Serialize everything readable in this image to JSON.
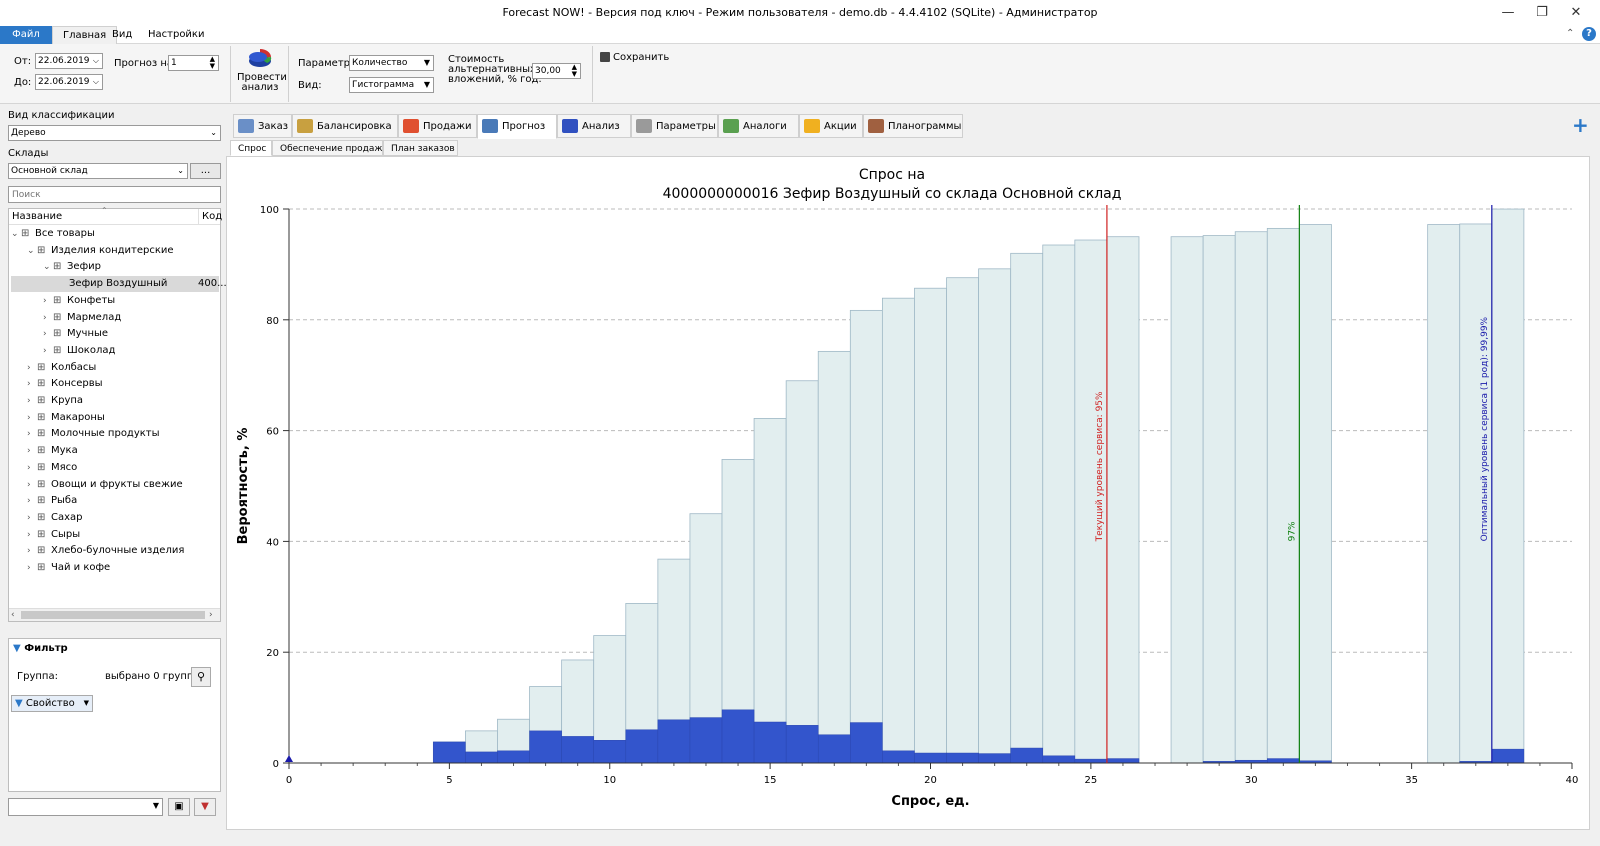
{
  "window": {
    "title": "Forecast NOW! - Версия под ключ - Режим пользователя - demo.db - 4.4.4102 (SQLite) - Администратор"
  },
  "menu": {
    "file": "Файл",
    "home": "Главная",
    "view": "Вид",
    "settings": "Настройки"
  },
  "ribbon": {
    "from_label": "От:",
    "from_value": "22.06.2019",
    "to_label": "До:",
    "to_value": "22.06.2019",
    "forecast_label": "Прогноз на:",
    "forecast_value": "1",
    "run_label_1": "Провести",
    "run_label_2": "анализ",
    "param_label": "Параметр:",
    "param_value": "Количество",
    "view_label": "Вид:",
    "view_value": "Гистограмма",
    "cost_label_1": "Стоимость",
    "cost_label_2": "альтернативных",
    "cost_label_3": "вложений, % год:",
    "cost_value": "30,00",
    "save_label": "Сохранить"
  },
  "left": {
    "classification_label": "Вид классификации",
    "classification_value": "Дерево",
    "warehouses_label": "Склады",
    "warehouse_value": "Основной склад",
    "browse_label": "...",
    "search_placeholder": "Поиск",
    "col_name": "Название",
    "col_code": "Код",
    "tree": [
      {
        "label": "Все товары",
        "level": 0,
        "exp": "⌄"
      },
      {
        "label": "Изделия кондитерские",
        "level": 1,
        "exp": "⌄"
      },
      {
        "label": "Зефир",
        "level": 2,
        "exp": "⌄"
      },
      {
        "label": "Зефир Воздушный",
        "level": 3,
        "exp": "",
        "code": "400...",
        "selected": true
      },
      {
        "label": "Конфеты",
        "level": 2,
        "exp": "›"
      },
      {
        "label": "Мармелад",
        "level": 2,
        "exp": "›"
      },
      {
        "label": "Мучные",
        "level": 2,
        "exp": "›"
      },
      {
        "label": "Шоколад",
        "level": 2,
        "exp": "›"
      },
      {
        "label": "Колбасы",
        "level": 1,
        "exp": "›"
      },
      {
        "label": "Консервы",
        "level": 1,
        "exp": "›"
      },
      {
        "label": "Крупа",
        "level": 1,
        "exp": "›"
      },
      {
        "label": "Макароны",
        "level": 1,
        "exp": "›"
      },
      {
        "label": "Молочные продукты",
        "level": 1,
        "exp": "›"
      },
      {
        "label": "Мука",
        "level": 1,
        "exp": "›"
      },
      {
        "label": "Мясо",
        "level": 1,
        "exp": "›"
      },
      {
        "label": "Овощи и фрукты свежие",
        "level": 1,
        "exp": "›"
      },
      {
        "label": "Рыба",
        "level": 1,
        "exp": "›"
      },
      {
        "label": "Сахар",
        "level": 1,
        "exp": "›"
      },
      {
        "label": "Сыры",
        "level": 1,
        "exp": "›"
      },
      {
        "label": "Хлебо-булочные изделия",
        "level": 1,
        "exp": "›"
      },
      {
        "label": "Чай и кофе",
        "level": 1,
        "exp": "›"
      }
    ],
    "filter_title": "Фильтр",
    "group_label": "Группа:",
    "group_value": "выбрано 0 групп",
    "property_label": "Свойство"
  },
  "tabs": [
    {
      "label": "Заказ",
      "color": "#6a8fc7"
    },
    {
      "label": "Балансировка",
      "color": "#c8a040"
    },
    {
      "label": "Продажи",
      "color": "#e05030"
    },
    {
      "label": "Прогноз",
      "color": "#4a7ab8",
      "active": true
    },
    {
      "label": "Анализ",
      "color": "#3050c0"
    },
    {
      "label": "Параметры",
      "color": "#9a9a9a"
    },
    {
      "label": "Аналоги",
      "color": "#5aa050"
    },
    {
      "label": "Акции",
      "color": "#f0b020"
    },
    {
      "label": "Планограммы",
      "color": "#a06040"
    }
  ],
  "subtabs": [
    {
      "label": "Спрос",
      "active": true
    },
    {
      "label": "Обеспечение продаж"
    },
    {
      "label": "План заказов"
    }
  ],
  "chart_data": {
    "type": "bar",
    "title_line1": "Спрос на",
    "title_line2": "4000000000016 Зефир Воздушный со склада Основной склад",
    "xlabel": "Спрос, ед.",
    "ylabel": "Вероятность, %",
    "xlim": [
      0,
      40
    ],
    "ylim": [
      0,
      100
    ],
    "xticks": [
      0,
      5,
      10,
      15,
      20,
      25,
      30,
      35,
      40
    ],
    "yticks": [
      0,
      20,
      40,
      60,
      80,
      100
    ],
    "grid": true,
    "x": [
      5,
      6,
      7,
      8,
      9,
      10,
      11,
      12,
      13,
      14,
      15,
      16,
      17,
      18,
      19,
      20,
      21,
      22,
      23,
      24,
      25,
      26,
      28,
      29,
      30,
      31,
      32,
      36,
      37,
      38
    ],
    "series": [
      {
        "values": [
          3.8,
          5.8,
          7.9,
          13.8,
          18.6,
          23,
          28.8,
          36.8,
          45,
          54.8,
          62.2,
          69,
          74.3,
          81.7,
          83.9,
          85.7,
          87.6,
          89.2,
          92,
          93.5,
          94.4,
          95,
          95,
          95.2,
          95.9,
          96.5,
          97.2,
          97.2,
          97.3,
          99.99
        ],
        "color": "#e2eeef"
      },
      {
        "values": [
          3.8,
          2,
          2.2,
          5.8,
          4.8,
          4.1,
          6,
          7.8,
          8.2,
          9.6,
          7.4,
          6.8,
          5.1,
          7.3,
          2.2,
          1.8,
          1.8,
          1.7,
          2.7,
          1.3,
          0.7,
          0.8,
          0,
          0.3,
          0.5,
          0.8,
          0.4,
          0,
          0.3,
          2.5
        ],
        "color": "#3355cc"
      }
    ],
    "markers": [
      {
        "x": 25.5,
        "label": "Текущий уровень сервиса: 95%",
        "color": "#d02020"
      },
      {
        "x": 31.5,
        "label": "97%",
        "color": "#108010"
      },
      {
        "x": 37.5,
        "label": "Оптимальный уровень сервиса (1 род): 99,99%",
        "color": "#1a1aaa"
      }
    ]
  }
}
